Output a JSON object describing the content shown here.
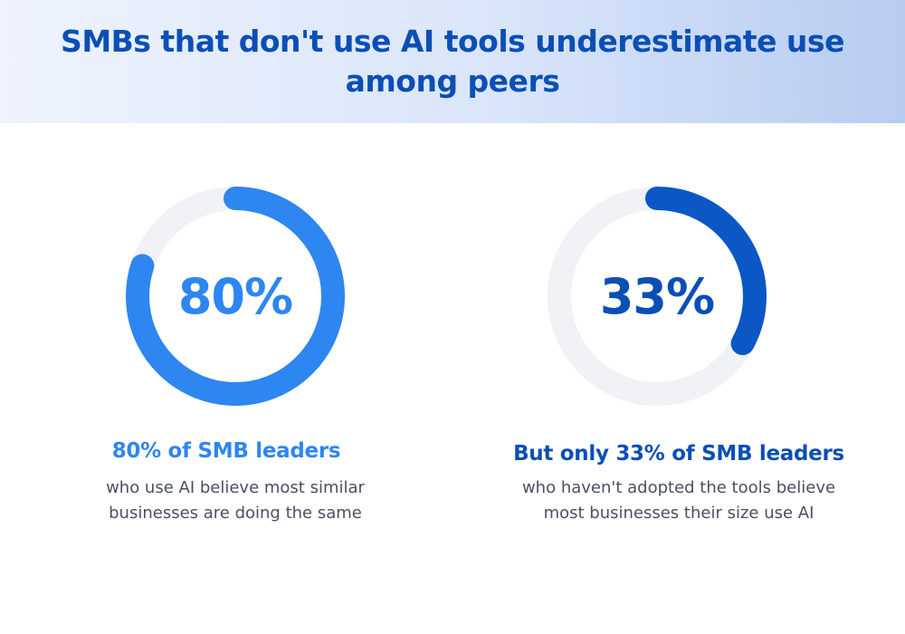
{
  "header": {
    "title": "SMBs that don't use AI tools underestimate use among peers"
  },
  "chart_data": [
    {
      "type": "pie",
      "style": "donut",
      "value": 80,
      "center_label": "80%",
      "headline": "80% of SMB leaders",
      "description": "who use AI believe most similar businesses are doing the same",
      "color": "#2e86f0",
      "track_color": "#f0f2f6",
      "label_color": "#2e86f0"
    },
    {
      "type": "pie",
      "style": "donut",
      "value": 33,
      "center_label": "33%",
      "headline": "But only 33% of SMB leaders",
      "description": "who haven't adopted the tools believe most businesses their size use AI",
      "color": "#0b57c5",
      "track_color": "#f0f2f6",
      "label_color": "#0b4fb5"
    }
  ]
}
